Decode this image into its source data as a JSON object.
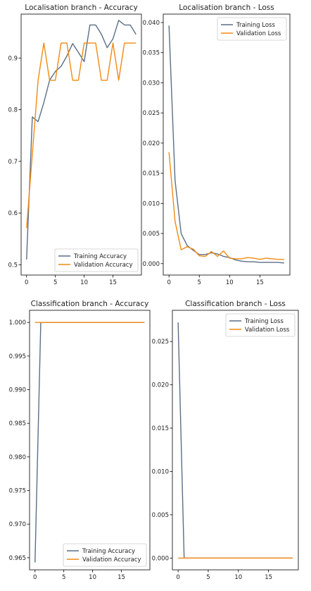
{
  "colors": {
    "training": "#5a6f85",
    "validation": "#f28a12",
    "axis": "#000000",
    "text": "#222222"
  },
  "chart_data": [
    {
      "type": "line",
      "title": "Localisation branch - Accuracy",
      "xlabel": "",
      "ylabel": "",
      "xlim": [
        -0.95,
        19.95
      ],
      "ylim": [
        0.48,
        0.985
      ],
      "xticks": [
        0,
        5,
        10,
        15
      ],
      "yticks": [
        0.5,
        0.6,
        0.7,
        0.8,
        0.9
      ],
      "ytick_labels": [
        "0.5",
        "0.6",
        "0.7",
        "0.8",
        "0.9"
      ],
      "grid": false,
      "legend_position": "lower-right",
      "x": [
        0,
        1,
        2,
        3,
        4,
        5,
        6,
        7,
        8,
        9,
        10,
        11,
        12,
        13,
        14,
        15,
        16,
        17,
        18,
        19
      ],
      "series": [
        {
          "name": "Training Accuracy",
          "color": "#5a6f85",
          "values": [
            0.51,
            0.786,
            0.777,
            0.814,
            0.857,
            0.874,
            0.884,
            0.904,
            0.928,
            0.911,
            0.893,
            0.964,
            0.964,
            0.946,
            0.92,
            0.937,
            0.973,
            0.964,
            0.964,
            0.946
          ]
        },
        {
          "name": "Validation Accuracy",
          "color": "#f28a12",
          "values": [
            0.571,
            0.714,
            0.857,
            0.929,
            0.857,
            0.857,
            0.929,
            0.929,
            0.857,
            0.857,
            0.929,
            0.929,
            0.929,
            0.857,
            0.857,
            0.929,
            0.857,
            0.929,
            0.929,
            0.929
          ]
        }
      ]
    },
    {
      "type": "line",
      "title": "Localisation branch - Loss",
      "xlabel": "",
      "ylabel": "",
      "xlim": [
        -0.95,
        19.95
      ],
      "ylim": [
        -0.0019,
        0.0414
      ],
      "xticks": [
        0,
        5,
        10,
        15
      ],
      "yticks": [
        0,
        0.005,
        0.01,
        0.015,
        0.02,
        0.025,
        0.03,
        0.035,
        0.04
      ],
      "ytick_labels": [
        "0.000",
        "0.005",
        "0.010",
        "0.015",
        "0.020",
        "0.025",
        "0.030",
        "0.035",
        "0.040"
      ],
      "grid": false,
      "legend_position": "upper-right",
      "x": [
        0,
        1,
        2,
        3,
        4,
        5,
        6,
        7,
        8,
        9,
        10,
        11,
        12,
        13,
        14,
        15,
        16,
        17,
        18,
        19
      ],
      "series": [
        {
          "name": "Training Loss",
          "color": "#5a6f85",
          "values": [
            0.0395,
            0.0138,
            0.005,
            0.003,
            0.0022,
            0.0015,
            0.0015,
            0.0018,
            0.0016,
            0.0012,
            0.001,
            0.0006,
            0.0004,
            0.0003,
            0.0003,
            0.0002,
            0.0002,
            0.0002,
            0.0002,
            0.0001
          ]
        },
        {
          "name": "Validation Loss",
          "color": "#f28a12",
          "values": [
            0.0185,
            0.007,
            0.0023,
            0.0028,
            0.0024,
            0.0013,
            0.0012,
            0.002,
            0.0012,
            0.0021,
            0.0009,
            0.0008,
            0.0008,
            0.001,
            0.0009,
            0.0007,
            0.0009,
            0.0008,
            0.0007,
            0.0007
          ]
        }
      ]
    },
    {
      "type": "line",
      "title": "Classification branch - Accuracy",
      "xlabel": "",
      "ylabel": "",
      "xlim": [
        -0.95,
        19.95
      ],
      "ylim": [
        0.9632,
        1.0018
      ],
      "xticks": [
        0,
        5,
        10,
        15
      ],
      "yticks": [
        0.965,
        0.97,
        0.975,
        0.98,
        0.985,
        0.99,
        0.995,
        1.0
      ],
      "ytick_labels": [
        "0.965",
        "0.970",
        "0.975",
        "0.980",
        "0.985",
        "0.990",
        "0.995",
        "1.000"
      ],
      "grid": false,
      "legend_position": "lower-right",
      "x": [
        0,
        1,
        2,
        3,
        4,
        5,
        6,
        7,
        8,
        9,
        10,
        11,
        12,
        13,
        14,
        15,
        16,
        17,
        18,
        19
      ],
      "series": [
        {
          "name": "Training Accuracy",
          "color": "#5a6f85",
          "values": [
            0.9643,
            1,
            1,
            1,
            1,
            1,
            1,
            1,
            1,
            1,
            1,
            1,
            1,
            1,
            1,
            1,
            1,
            1,
            1,
            1
          ]
        },
        {
          "name": "Validation Accuracy",
          "color": "#f28a12",
          "values": [
            1,
            1,
            1,
            1,
            1,
            1,
            1,
            1,
            1,
            1,
            1,
            1,
            1,
            1,
            1,
            1,
            1,
            1,
            1,
            1
          ]
        }
      ]
    },
    {
      "type": "line",
      "title": "Classification branch - Loss",
      "xlabel": "",
      "ylabel": "",
      "xlim": [
        -0.95,
        19.95
      ],
      "ylim": [
        -0.00136,
        0.0286
      ],
      "xticks": [
        0,
        5,
        10,
        15
      ],
      "yticks": [
        0,
        0.005,
        0.01,
        0.015,
        0.02,
        0.025
      ],
      "ytick_labels": [
        "0.000",
        "0.005",
        "0.010",
        "0.015",
        "0.020",
        "0.025"
      ],
      "grid": false,
      "legend_position": "upper-right",
      "x": [
        0,
        1,
        2,
        3,
        4,
        5,
        6,
        7,
        8,
        9,
        10,
        11,
        12,
        13,
        14,
        15,
        16,
        17,
        18,
        19
      ],
      "series": [
        {
          "name": "Training Loss",
          "color": "#5a6f85",
          "values": [
            0.0272,
            0,
            0,
            0,
            0,
            0,
            0,
            0,
            0,
            0,
            0,
            0,
            0,
            0,
            0,
            0,
            0,
            0,
            0,
            0
          ]
        },
        {
          "name": "Validation Loss",
          "color": "#f28a12",
          "values": [
            0,
            0,
            0,
            0,
            0,
            0,
            0,
            0,
            0,
            0,
            0,
            0,
            0,
            0,
            0,
            0,
            0,
            0,
            0,
            0
          ]
        }
      ]
    }
  ]
}
